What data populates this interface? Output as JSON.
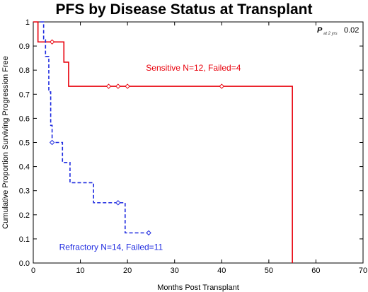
{
  "chart_data": {
    "type": "line",
    "title": "PFS by Disease Status at Transplant",
    "xlabel": "Months Post Transplant",
    "ylabel": "Cumulative Proportion Surviving Progression Free",
    "xlim": [
      0,
      70
    ],
    "ylim": [
      0.0,
      1.0
    ],
    "xticks": [
      "0",
      "10",
      "20",
      "30",
      "40",
      "50",
      "60",
      "70"
    ],
    "yticks": [
      "0.0",
      "0.1",
      "0.2",
      "0.3",
      "0.4",
      "0.5",
      "0.6",
      "0.7",
      "0.8",
      "0.9",
      "1"
    ],
    "grid": false,
    "pvalue": {
      "p": "P",
      "subscript": "at 2 yrs",
      "value": "0.02"
    },
    "series": [
      {
        "name": "Sensitive N=12, Failed=4",
        "color": "#e8000b",
        "line_style": "solid",
        "steps": [
          [
            0,
            1.0
          ],
          [
            1,
            0.917
          ],
          [
            6.5,
            0.833
          ],
          [
            7.5,
            0.733
          ],
          [
            55,
            0.733
          ],
          [
            55,
            0.0
          ]
        ],
        "censored": [
          [
            4,
            0.917
          ],
          [
            16,
            0.733
          ],
          [
            18,
            0.733
          ],
          [
            20,
            0.733
          ],
          [
            40,
            0.733
          ]
        ]
      },
      {
        "name": "Refractory N=14, Failed=11",
        "color": "#1f2be0",
        "line_style": "dashed",
        "steps": [
          [
            1.5,
            1.0
          ],
          [
            2.2,
            0.93
          ],
          [
            2.6,
            0.857
          ],
          [
            3.3,
            0.71
          ],
          [
            3.7,
            0.571
          ],
          [
            4.0,
            0.5
          ],
          [
            6.2,
            0.417
          ],
          [
            7.8,
            0.333
          ],
          [
            12.8,
            0.25
          ],
          [
            19.5,
            0.125
          ],
          [
            24.5,
            0.125
          ]
        ],
        "censored": [
          [
            4,
            0.5
          ],
          [
            18,
            0.25
          ],
          [
            24.5,
            0.125
          ]
        ]
      }
    ],
    "annotations": [
      {
        "text": "Sensitive N=12, Failed=4",
        "series": 0
      },
      {
        "text": "Refractory N=14, Failed=11",
        "series": 1
      }
    ]
  }
}
